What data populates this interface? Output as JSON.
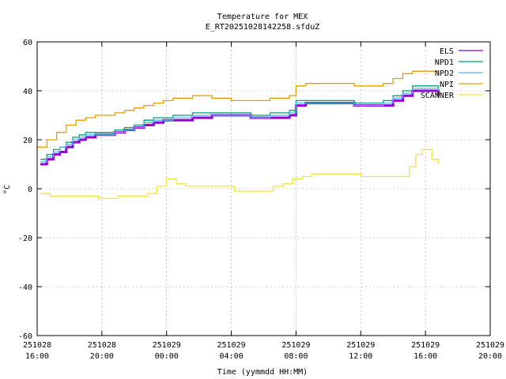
{
  "chart_data": {
    "type": "line",
    "title": "Temperature for MEX",
    "subtitle": "E_RT20251028142258.sfduZ",
    "xlabel": "Time (yymmdd HH:MM)",
    "ylabel": "°C",
    "ylim": [
      -60,
      60
    ],
    "yticks": [
      -60,
      -40,
      -20,
      0,
      20,
      40,
      60
    ],
    "xlim": [
      16,
      44
    ],
    "xticks": [
      {
        "x": 16,
        "date": "251028",
        "time": "16:00"
      },
      {
        "x": 20,
        "date": "251028",
        "time": "20:00"
      },
      {
        "x": 24,
        "date": "251029",
        "time": "00:00"
      },
      {
        "x": 28,
        "date": "251029",
        "time": "04:00"
      },
      {
        "x": 32,
        "date": "251029",
        "time": "08:00"
      },
      {
        "x": 36,
        "date": "251029",
        "time": "12:00"
      },
      {
        "x": 40,
        "date": "251029",
        "time": "16:00"
      },
      {
        "x": 44,
        "date": "251029",
        "time": "20:00"
      }
    ],
    "grid": true,
    "legend_position": "top-right",
    "series": [
      {
        "name": "ELS",
        "color": "#9400d3",
        "width": 3,
        "x": [
          16.2,
          16.6,
          17.0,
          17.4,
          17.8,
          18.2,
          18.6,
          19.0,
          19.6,
          20.2,
          20.8,
          21.4,
          22.0,
          22.6,
          23.2,
          23.8,
          24.4,
          25.0,
          25.6,
          26.2,
          26.8,
          27.4,
          28.0,
          28.6,
          29.2,
          29.8,
          30.4,
          31.0,
          31.6,
          32.0,
          32.6,
          33.2,
          33.8,
          34.4,
          35.0,
          35.6,
          36.2,
          36.8,
          37.4,
          38.0,
          38.6,
          39.2,
          39.8,
          40.4,
          40.8
        ],
        "y": [
          10,
          12,
          14,
          15,
          17,
          19,
          20,
          21,
          22,
          22,
          23,
          24,
          25,
          26,
          27,
          28,
          28,
          28,
          29,
          29,
          30,
          30,
          30,
          30,
          29,
          29,
          29,
          29,
          30,
          34,
          35,
          35,
          35,
          35,
          35,
          34,
          34,
          34,
          34,
          36,
          38,
          40,
          40,
          40,
          38
        ]
      },
      {
        "name": "NPD1",
        "color": "#009e73",
        "width": 1.3,
        "x": [
          16.2,
          16.6,
          17.0,
          17.4,
          17.8,
          18.2,
          18.6,
          19.0,
          19.6,
          20.2,
          20.8,
          21.4,
          22.0,
          22.6,
          23.2,
          23.8,
          24.4,
          25.0,
          25.6,
          26.2,
          26.8,
          27.4,
          28.0,
          28.6,
          29.2,
          29.8,
          30.4,
          31.0,
          31.6,
          32.0,
          32.6,
          33.2,
          33.8,
          34.4,
          35.0,
          35.6,
          36.2,
          36.8,
          37.4,
          38.0,
          38.6,
          39.2,
          39.8,
          40.4,
          40.8
        ],
        "y": [
          12,
          14,
          16,
          17,
          19,
          21,
          22,
          23,
          23,
          23,
          24,
          25,
          26,
          28,
          29,
          29,
          30,
          30,
          31,
          31,
          31,
          31,
          31,
          31,
          30,
          30,
          31,
          31,
          32,
          36,
          36,
          36,
          36,
          36,
          36,
          35,
          35,
          35,
          36,
          38,
          40,
          42,
          42,
          42,
          41
        ]
      },
      {
        "name": "NPD2",
        "color": "#56b4e9",
        "width": 1.3,
        "x": [
          16.2,
          16.6,
          17.0,
          17.4,
          17.8,
          18.2,
          18.6,
          19.0,
          19.6,
          20.2,
          20.8,
          21.4,
          22.0,
          22.6,
          23.2,
          23.8,
          24.4,
          25.0,
          25.6,
          26.2,
          26.8,
          27.4,
          28.0,
          28.6,
          29.2,
          29.8,
          30.4,
          31.0,
          31.6,
          32.0,
          32.6,
          33.2,
          33.8,
          34.4,
          35.0,
          35.6,
          36.2,
          36.8,
          37.4,
          38.0,
          38.6,
          39.2,
          39.8,
          40.4,
          40.8
        ],
        "y": [
          11,
          13,
          15,
          17,
          18,
          20,
          21,
          22,
          22,
          22,
          23,
          24,
          25,
          27,
          28,
          28,
          29,
          29,
          30,
          30,
          30,
          30,
          30,
          30,
          29,
          29,
          30,
          30,
          31,
          35,
          35,
          35,
          35,
          35,
          35,
          34,
          34,
          34,
          35,
          37,
          39,
          41,
          41,
          41,
          40
        ]
      },
      {
        "name": "NPI",
        "color": "#e69f00",
        "width": 1.3,
        "x": [
          16.0,
          16.6,
          17.2,
          17.8,
          18.4,
          19.0,
          19.6,
          20.2,
          20.8,
          21.4,
          22.0,
          22.6,
          23.2,
          23.8,
          24.4,
          25.0,
          25.6,
          26.2,
          26.8,
          27.4,
          28.0,
          28.6,
          29.2,
          29.8,
          30.4,
          31.0,
          31.6,
          32.0,
          32.6,
          33.2,
          33.8,
          34.4,
          35.0,
          35.6,
          36.2,
          36.8,
          37.4,
          38.0,
          38.6,
          39.2,
          39.8,
          40.4,
          40.8
        ],
        "y": [
          17,
          20,
          23,
          26,
          28,
          29,
          30,
          30,
          31,
          32,
          33,
          34,
          35,
          36,
          37,
          37,
          38,
          38,
          37,
          37,
          36,
          36,
          36,
          36,
          37,
          37,
          38,
          42,
          43,
          43,
          43,
          43,
          43,
          42,
          42,
          42,
          43,
          45,
          47,
          48,
          48,
          48,
          47
        ]
      },
      {
        "name": "SCANNER",
        "color": "#f0e442",
        "width": 1.3,
        "x": [
          16.2,
          16.8,
          17.4,
          18.0,
          18.6,
          19.2,
          19.8,
          20.4,
          21.0,
          21.6,
          22.2,
          22.8,
          23.4,
          24.0,
          24.6,
          25.2,
          25.8,
          26.4,
          27.0,
          27.6,
          28.2,
          28.8,
          29.4,
          30.0,
          30.6,
          31.2,
          31.8,
          32.4,
          33.0,
          33.6,
          34.2,
          34.8,
          35.4,
          36.0,
          36.6,
          37.2,
          37.8,
          38.4,
          39.0,
          39.4,
          39.8,
          40.4,
          40.8
        ],
        "y": [
          -2,
          -3,
          -3,
          -3,
          -3,
          -3,
          -4,
          -4,
          -3,
          -3,
          -3,
          -2,
          1,
          4,
          2,
          1,
          1,
          1,
          1,
          1,
          -1,
          -1,
          -1,
          -1,
          1,
          2,
          4,
          5,
          6,
          6,
          6,
          6,
          6,
          5,
          5,
          5,
          5,
          5,
          9,
          14,
          16,
          12,
          10
        ]
      }
    ]
  }
}
